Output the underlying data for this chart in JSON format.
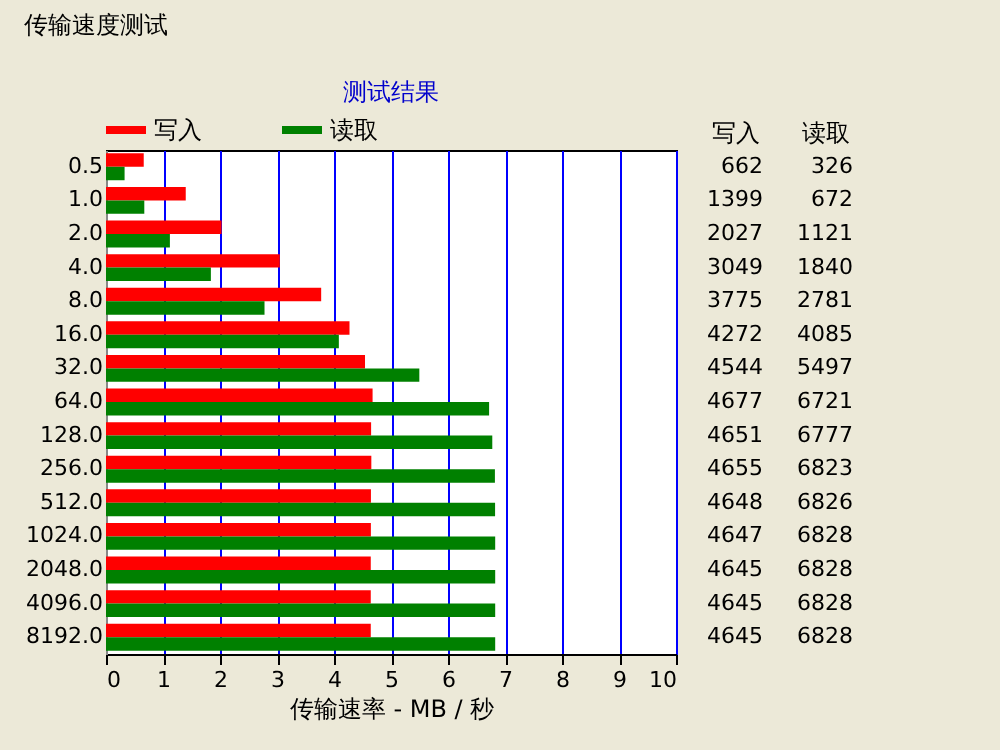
{
  "chart_data": {
    "type": "bar",
    "orientation": "horizontal",
    "title": "传输速度测试",
    "subtitle": "测试结果",
    "xlabel": "传输速率 - MB / 秒",
    "categories": [
      "0.5",
      "1.0",
      "2.0",
      "4.0",
      "8.0",
      "16.0",
      "32.0",
      "64.0",
      "128.0",
      "256.0",
      "512.0",
      "1024.0",
      "2048.0",
      "4096.0",
      "8192.0"
    ],
    "series": [
      {
        "name": "写入",
        "color": "#ff0000",
        "values": [
          0.662,
          1.399,
          2.027,
          3.049,
          3.775,
          4.272,
          4.544,
          4.677,
          4.651,
          4.655,
          4.648,
          4.647,
          4.645,
          4.645,
          4.645
        ]
      },
      {
        "name": "读取",
        "color": "#008000",
        "values": [
          0.326,
          0.672,
          1.121,
          1.84,
          2.781,
          4.085,
          5.497,
          6.721,
          6.777,
          6.823,
          6.826,
          6.828,
          6.828,
          6.828,
          6.828
        ]
      }
    ],
    "annotations": [
      "662",
      "326",
      "1399",
      "672",
      "2027",
      "1121",
      "3049",
      "1840",
      "3775",
      "2781",
      "4272",
      "4085",
      "4544",
      "5497",
      "4677",
      "6721",
      "4651",
      "6777",
      "4655",
      "6823",
      "4648",
      "6826",
      "4647",
      "6828",
      "4645",
      "6828",
      "4645",
      "6828",
      "4645",
      "6828"
    ],
    "xlim": [
      0,
      10
    ],
    "xticks": [
      0,
      1,
      2,
      3,
      4,
      5,
      6,
      7,
      8,
      9,
      10
    ],
    "grid": "x",
    "legend": "top"
  }
}
